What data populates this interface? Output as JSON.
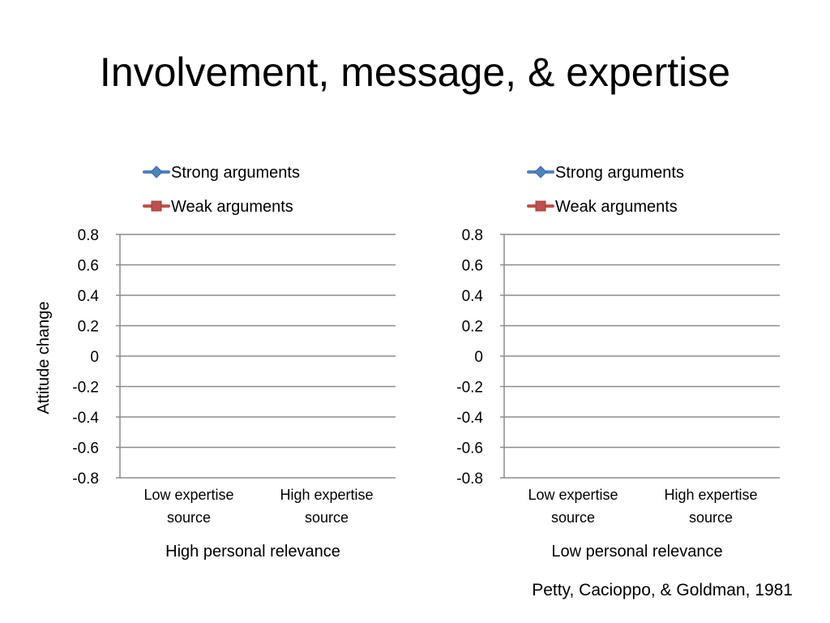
{
  "slide": {
    "title": "Involvement, message, & expertise",
    "citation": "Petty, Cacioppo, & Goldman, 1981"
  },
  "chart_data": [
    {
      "type": "line",
      "title": "",
      "xlabel": "High personal relevance",
      "ylabel": "Attitude change",
      "categories": [
        "Low expertise source",
        "High expertise source"
      ],
      "category_lines": [
        [
          "Low expertise",
          "source"
        ],
        [
          "High expertise",
          "source"
        ]
      ],
      "ylim": [
        -0.8,
        0.8
      ],
      "yticks": [
        "0.8",
        "0.6",
        "0.4",
        "0.2",
        "0",
        "-0.2",
        "-0.4",
        "-0.6",
        "-0.8"
      ],
      "grid": true,
      "legend_position": "top",
      "series": [
        {
          "name": "Strong arguments",
          "values": [
            null,
            null
          ],
          "color": "#4F81BD",
          "marker": "diamond"
        },
        {
          "name": "Weak arguments",
          "values": [
            null,
            null
          ],
          "color": "#C0504D",
          "marker": "square"
        }
      ]
    },
    {
      "type": "line",
      "title": "",
      "xlabel": "Low personal relevance",
      "ylabel": "",
      "categories": [
        "Low expertise source",
        "High expertise source"
      ],
      "category_lines": [
        [
          "Low expertise",
          "source"
        ],
        [
          "High expertise",
          "source"
        ]
      ],
      "ylim": [
        -0.8,
        0.8
      ],
      "yticks": [
        "0.8",
        "0.6",
        "0.4",
        "0.2",
        "0",
        "-0.2",
        "-0.4",
        "-0.6",
        "-0.8"
      ],
      "grid": true,
      "legend_position": "top",
      "series": [
        {
          "name": "Strong arguments",
          "values": [
            null,
            null
          ],
          "color": "#4F81BD",
          "marker": "diamond"
        },
        {
          "name": "Weak arguments",
          "values": [
            null,
            null
          ],
          "color": "#C0504D",
          "marker": "square"
        }
      ]
    }
  ]
}
